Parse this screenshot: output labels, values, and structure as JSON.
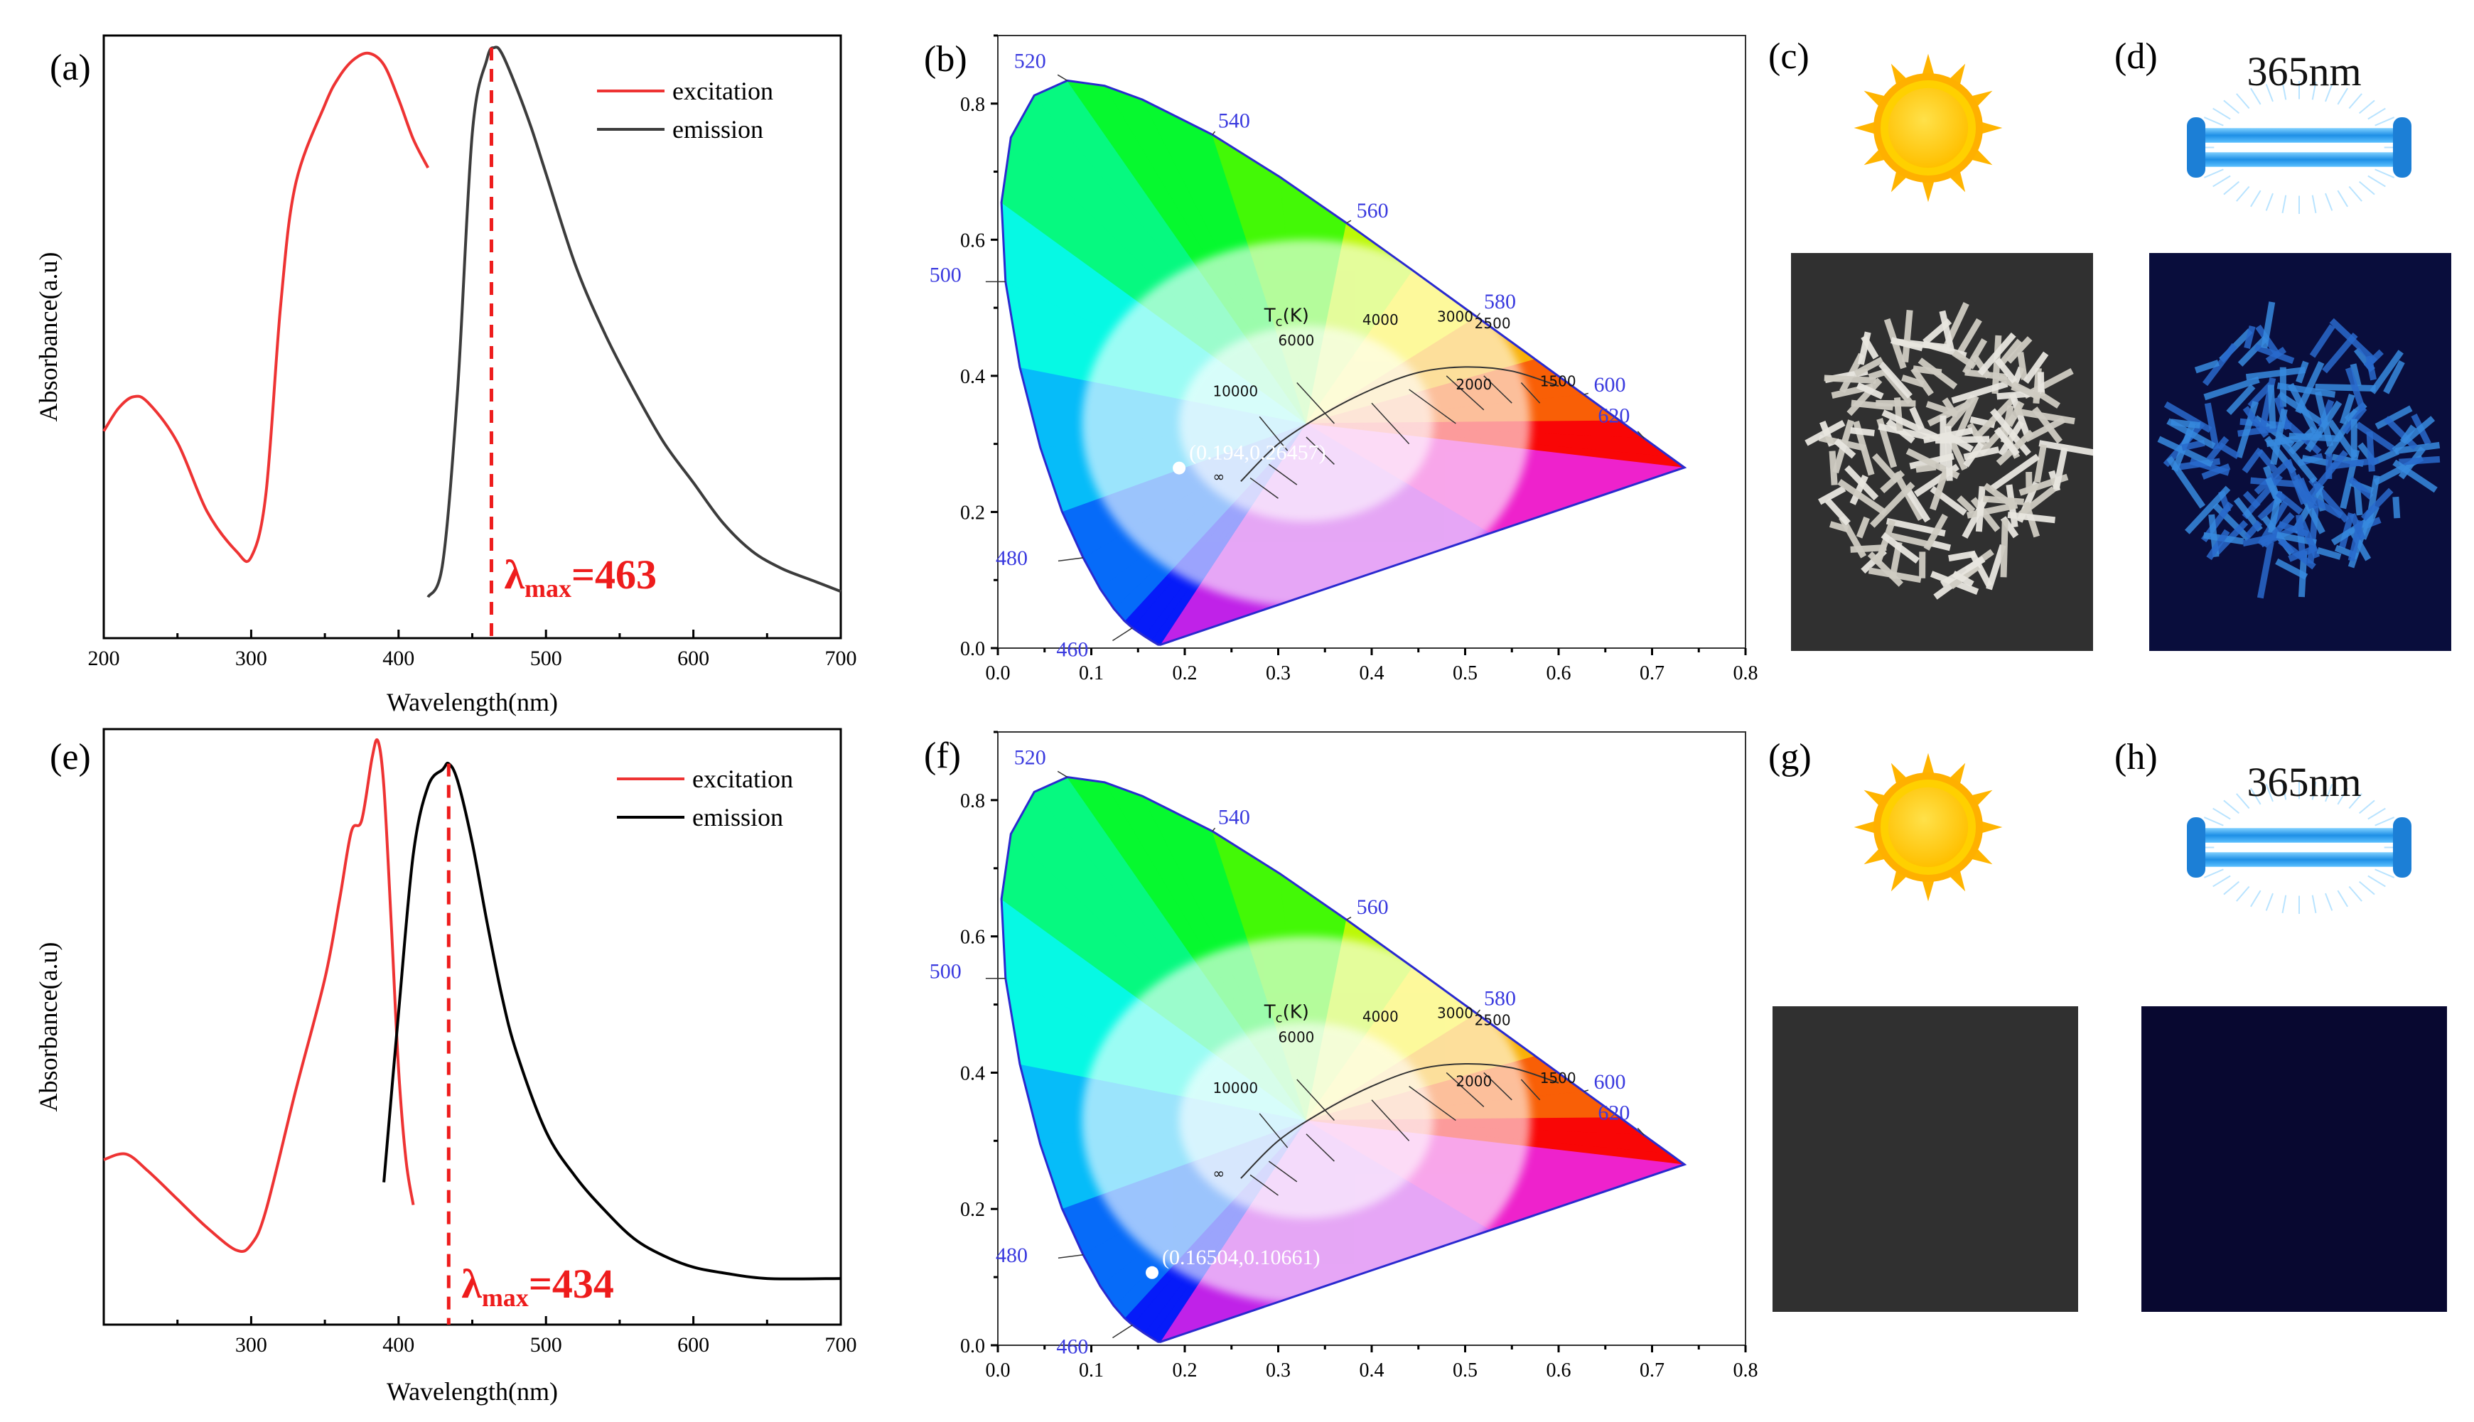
{
  "colors": {
    "excitation": "#ee3333",
    "emission_a": "#3c3c3c",
    "emission_e": "#000000",
    "lambda_line": "#ee1c1c",
    "cie_outline": "#2a2acf",
    "wavelength_label": "#3a3adf",
    "uv_lamp": "#2a9ff0",
    "sun": "#ffc400"
  },
  "panels": {
    "a": {
      "label": "(a)"
    },
    "b": {
      "label": "(b)"
    },
    "c": {
      "label": "(c)"
    },
    "d": {
      "label": "(d)",
      "uv_text": "365nm"
    },
    "e": {
      "label": "(e)"
    },
    "f": {
      "label": "(f)"
    },
    "g": {
      "label": "(g)"
    },
    "h": {
      "label": "(h)",
      "uv_text": "365nm"
    }
  },
  "icons": {
    "sun": "sun-icon",
    "uv_lamp": "uv-lamp-icon",
    "photo_daylight": "crystal-photo-daylight",
    "photo_uv": "crystal-photo-uv"
  },
  "chart_data": [
    {
      "id": "a",
      "type": "line",
      "xlabel": "Wavelength(nm)",
      "ylabel": "Absorbance(a.u)",
      "xlim": [
        200,
        700
      ],
      "xticks": [
        200,
        300,
        400,
        500,
        600,
        700
      ],
      "ylim": [
        0,
        1
      ],
      "legend_position": "top-right",
      "series": [
        {
          "name": "excitation",
          "color": "#ee3333",
          "x": [
            200,
            210,
            220,
            230,
            250,
            270,
            290,
            300,
            310,
            320,
            330,
            350,
            360,
            370,
            380,
            390,
            400,
            410,
            420
          ],
          "y": [
            0.33,
            0.37,
            0.39,
            0.38,
            0.31,
            0.19,
            0.12,
            0.11,
            0.22,
            0.55,
            0.76,
            0.9,
            0.95,
            0.98,
            0.99,
            0.97,
            0.91,
            0.84,
            0.79
          ]
        },
        {
          "name": "emission",
          "color": "#3c3c3c",
          "x": [
            420,
            430,
            440,
            450,
            460,
            465,
            470,
            480,
            490,
            500,
            520,
            540,
            560,
            580,
            600,
            620,
            640,
            660,
            680,
            700
          ],
          "y": [
            0.04,
            0.1,
            0.4,
            0.85,
            0.98,
            1.0,
            0.99,
            0.93,
            0.86,
            0.78,
            0.62,
            0.5,
            0.4,
            0.31,
            0.24,
            0.17,
            0.12,
            0.09,
            0.07,
            0.05
          ]
        }
      ],
      "annotation": {
        "lambda": "λ",
        "sub": "max",
        "value": "=463",
        "x": 463
      }
    },
    {
      "id": "b",
      "type": "scatter",
      "subtype": "cie1931",
      "xlim": [
        0.0,
        0.8
      ],
      "ylim": [
        0.0,
        0.9
      ],
      "xticks": [
        "0.0",
        "0.1",
        "0.2",
        "0.3",
        "0.4",
        "0.5",
        "0.6",
        "0.7",
        "0.8"
      ],
      "yticks": [
        "0.0",
        "0.2",
        "0.4",
        "0.6",
        "0.8"
      ],
      "wavelength_labels": [
        "460",
        "480",
        "500",
        "520",
        "540",
        "560",
        "580",
        "600",
        "620"
      ],
      "tc_label": "T",
      "tc_sub": "c",
      "tc_unit": "(K)",
      "cct_labels": [
        "10000",
        "6000",
        "4000",
        "3000",
        "2500",
        "2000",
        "1500",
        "∞"
      ],
      "point": {
        "x": 0.194,
        "y": 0.26457,
        "label": "(0.194,0.26457)"
      }
    },
    {
      "id": "e",
      "type": "line",
      "xlabel": "Wavelength(nm)",
      "ylabel": "Absorbance(a.u)",
      "xlim": [
        200,
        700
      ],
      "xticks": [
        300,
        400,
        500,
        600,
        700
      ],
      "ylim": [
        0,
        1
      ],
      "legend_position": "top-right",
      "series": [
        {
          "name": "excitation",
          "color": "#ee3333",
          "x": [
            200,
            215,
            230,
            250,
            270,
            290,
            300,
            310,
            330,
            350,
            360,
            368,
            375,
            382,
            386,
            390,
            395,
            400,
            405,
            410
          ],
          "y": [
            0.26,
            0.27,
            0.24,
            0.19,
            0.14,
            0.1,
            0.11,
            0.17,
            0.38,
            0.58,
            0.72,
            0.84,
            0.86,
            0.97,
            1.0,
            0.92,
            0.68,
            0.42,
            0.26,
            0.18
          ]
        },
        {
          "name": "emission",
          "color": "#000000",
          "x": [
            390,
            400,
            410,
            420,
            430,
            434,
            440,
            450,
            460,
            470,
            480,
            500,
            520,
            540,
            560,
            580,
            600,
            620,
            650,
            700
          ],
          "y": [
            0.22,
            0.52,
            0.8,
            0.92,
            0.95,
            0.96,
            0.93,
            0.82,
            0.68,
            0.55,
            0.45,
            0.31,
            0.23,
            0.17,
            0.12,
            0.09,
            0.07,
            0.06,
            0.05,
            0.05
          ]
        }
      ],
      "annotation": {
        "lambda": "λ",
        "sub": "max",
        "value": "=434",
        "x": 434
      }
    },
    {
      "id": "f",
      "type": "scatter",
      "subtype": "cie1931",
      "xlim": [
        0.0,
        0.8
      ],
      "ylim": [
        0.0,
        0.9
      ],
      "xticks": [
        "0.0",
        "0.1",
        "0.2",
        "0.3",
        "0.4",
        "0.5",
        "0.6",
        "0.7",
        "0.8"
      ],
      "yticks": [
        "0.0",
        "0.2",
        "0.4",
        "0.6",
        "0.8"
      ],
      "wavelength_labels": [
        "460",
        "480",
        "500",
        "520",
        "540",
        "560",
        "580",
        "600",
        "620"
      ],
      "tc_label": "T",
      "tc_sub": "c",
      "tc_unit": "(K)",
      "cct_labels": [
        "10000",
        "6000",
        "4000",
        "3000",
        "2500",
        "2000",
        "1500",
        "∞"
      ],
      "point": {
        "x": 0.16504,
        "y": 0.10661,
        "label": "(0.16504,0.10661)"
      }
    }
  ]
}
